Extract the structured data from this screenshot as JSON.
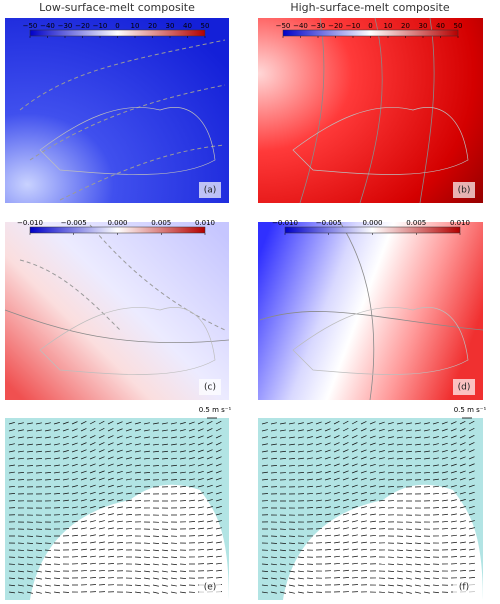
{
  "columns": [
    "Low-surface-melt composite",
    "High-surface-melt composite"
  ],
  "colorbars": [
    {
      "lim": [
        -50,
        50
      ],
      "ticks": [
        {
          "value": -50,
          "label": "−50"
        },
        {
          "value": -40,
          "label": "−40"
        },
        {
          "value": -30,
          "label": "−30"
        },
        {
          "value": -20,
          "label": "−20"
        },
        {
          "value": -10,
          "label": "−10"
        },
        0,
        10,
        20,
        30,
        40,
        50
      ]
    },
    {
      "lim": [
        -0.01,
        0.01
      ],
      "ticks": [
        {
          "value": -0.01,
          "label": "−0.010"
        },
        {
          "value": -0.005,
          "label": "−0.005"
        },
        {
          "value": 0,
          "label": "0.000"
        },
        {
          "value": 0.005,
          "label": "0.005"
        },
        {
          "value": 0.01,
          "label": "0.010"
        }
      ]
    }
  ],
  "panels": [
    "(a)",
    "(b)",
    "(c)",
    "(d)",
    "(e)",
    "(f)"
  ],
  "scale_labels": [
    "0.5 m s⁻¹",
    "0.5 m s⁻¹"
  ]
}
